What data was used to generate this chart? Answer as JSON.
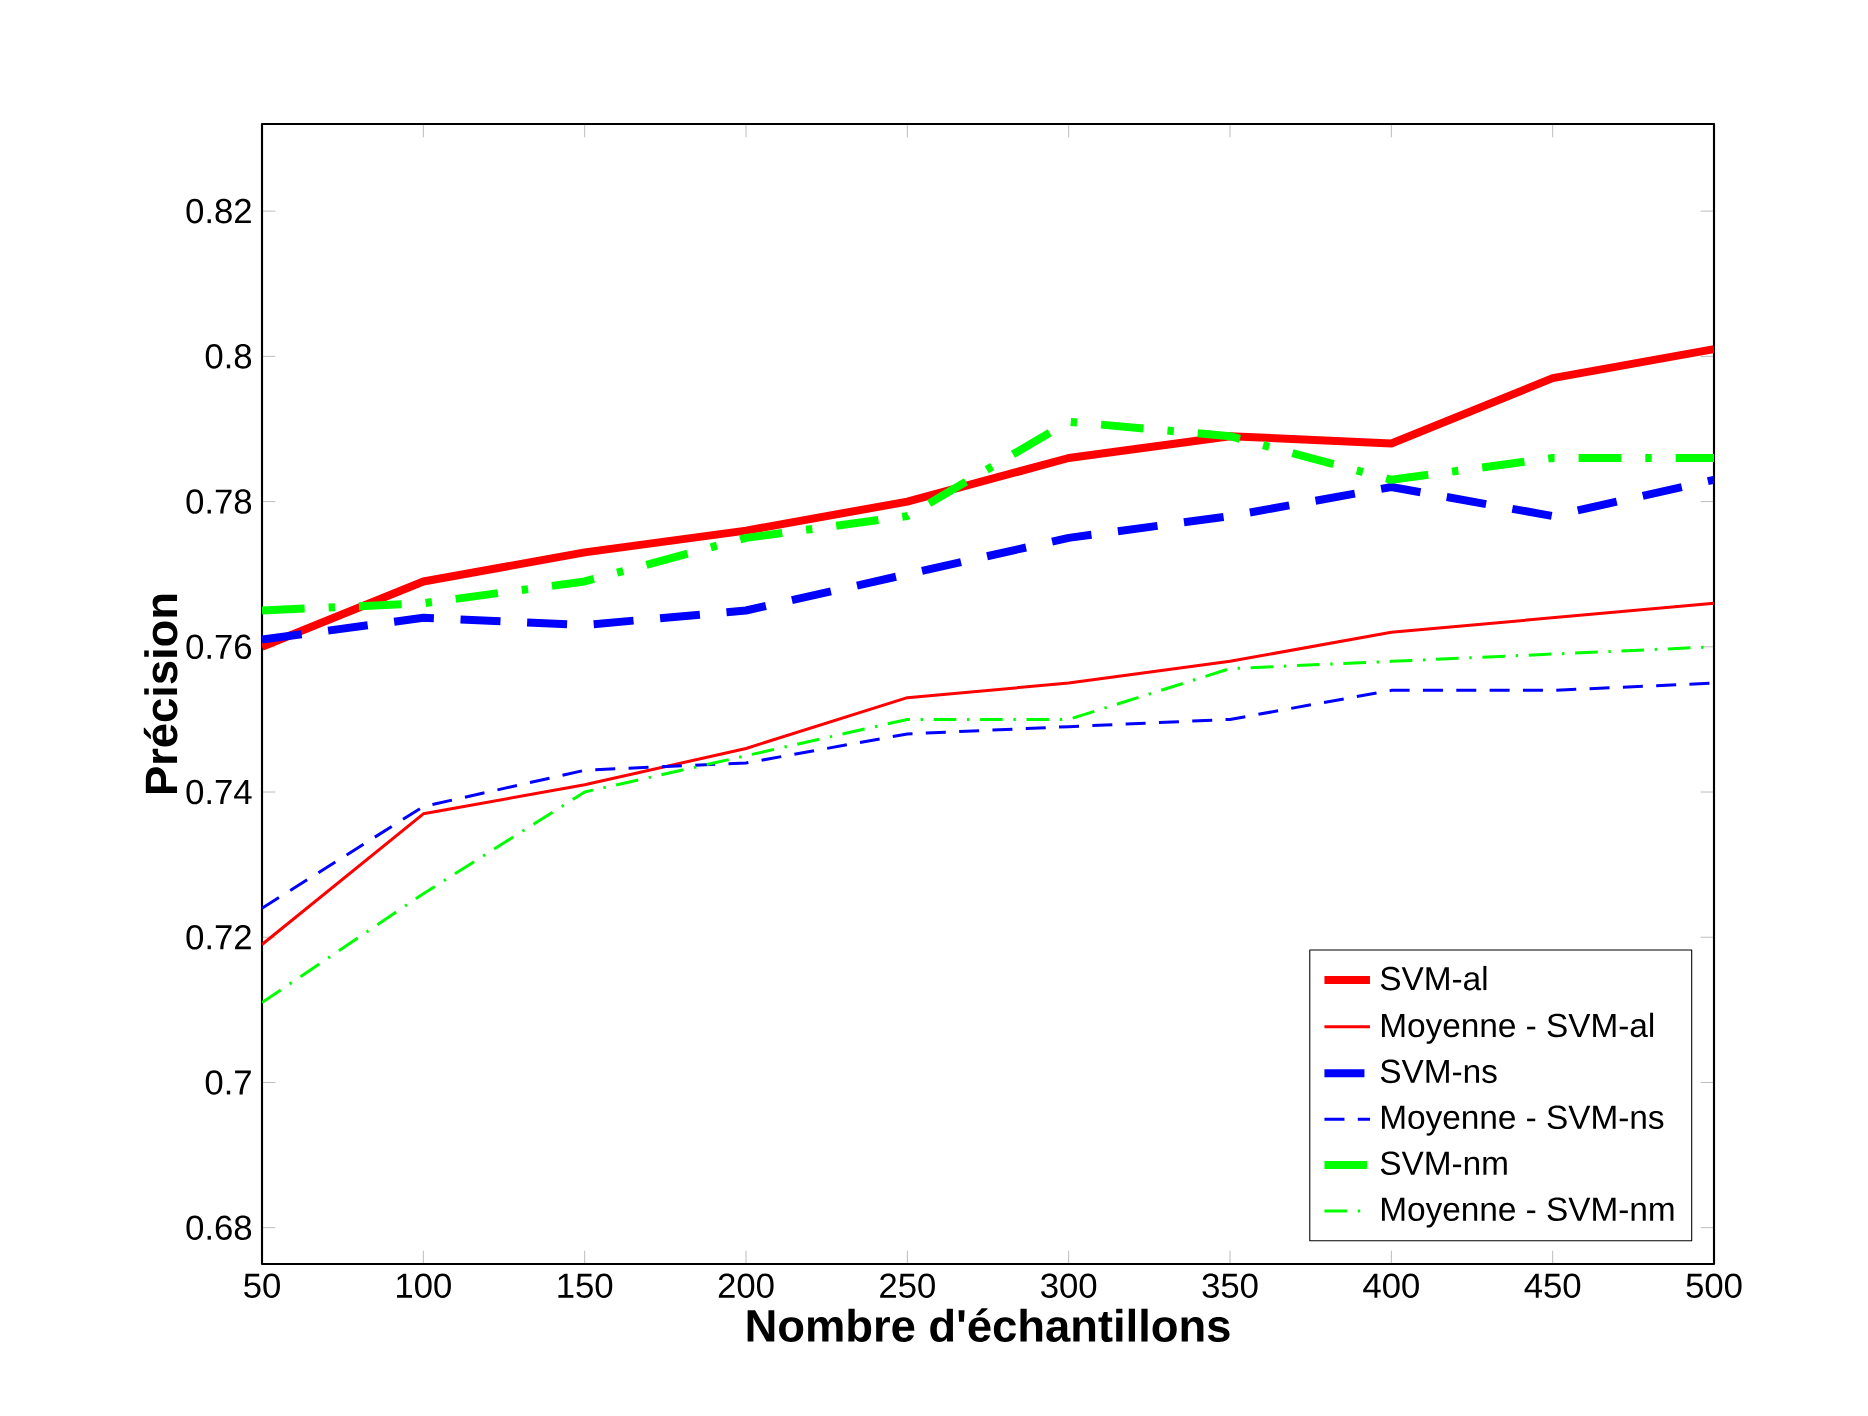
{
  "chart_data": {
    "type": "line",
    "xlabel": "Nombre d'échantillons",
    "ylabel": "Précision",
    "x": [
      50,
      100,
      150,
      200,
      250,
      300,
      350,
      400,
      450,
      500
    ],
    "xlim": [
      50,
      500
    ],
    "ylim": [
      0.675,
      0.832
    ],
    "xticks": [
      50,
      100,
      150,
      200,
      250,
      300,
      350,
      400,
      450,
      500
    ],
    "yticks": [
      0.68,
      0.7,
      0.72,
      0.74,
      0.76,
      0.78,
      0.8,
      0.82
    ],
    "legend": "bottom right",
    "grid": false,
    "marker": "none",
    "series": [
      {
        "name": "SVM-al",
        "color": "#ff0000",
        "line_style": "solid",
        "values": [
          0.76,
          0.769,
          0.773,
          0.776,
          0.78,
          0.786,
          0.789,
          0.788,
          0.797,
          0.801
        ]
      },
      {
        "name": "Moyenne - SVM-al",
        "color": "#ff0000",
        "line_style": "solid",
        "values": [
          0.719,
          0.737,
          0.741,
          0.746,
          0.753,
          0.755,
          0.758,
          0.762,
          0.764,
          0.766
        ]
      },
      {
        "name": "SVM-ns",
        "color": "#0000ff",
        "line_style": "dashed",
        "values": [
          0.761,
          0.764,
          0.763,
          0.765,
          0.77,
          0.775,
          0.778,
          0.782,
          0.778,
          0.783
        ]
      },
      {
        "name": "Moyenne - SVM-ns",
        "color": "#0000ff",
        "line_style": "dashed",
        "values": [
          0.724,
          0.738,
          0.743,
          0.744,
          0.748,
          0.749,
          0.75,
          0.754,
          0.754,
          0.755
        ]
      },
      {
        "name": "SVM-nm",
        "color": "#00ff00",
        "line_style": "dashdot",
        "values": [
          0.765,
          0.766,
          0.769,
          0.775,
          0.778,
          0.791,
          0.789,
          0.783,
          0.786,
          0.786
        ]
      },
      {
        "name": "Moyenne - SVM-nm",
        "color": "#00ff00",
        "line_style": "dashdot",
        "values": [
          0.711,
          0.726,
          0.74,
          0.745,
          0.75,
          0.75,
          0.757,
          0.758,
          0.759,
          0.76
        ]
      }
    ]
  }
}
